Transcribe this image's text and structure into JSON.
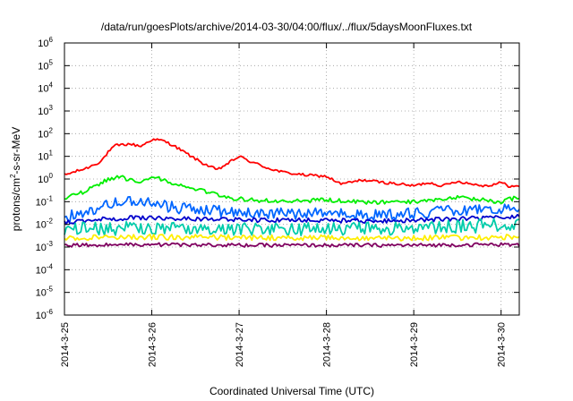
{
  "chart_data": {
    "type": "line",
    "title": "/data/run/goesPlots/archive/2014-03-30/04:00/flux/../flux/5daysMoonFluxes.txt",
    "xlabel": "Coordinated Universal Time (UTC)",
    "ylabel": "protons/cm2-s-sr-MeV",
    "ylabel_parts": [
      "protons/cm",
      "2",
      "-s-sr-MeV"
    ],
    "yscale": "log",
    "ylim": [
      1e-06,
      1000000.0
    ],
    "xlim": [
      "2014-03-25",
      "2014-03-30 05:00"
    ],
    "grid": true,
    "legend": "none",
    "x_ticks": [
      "2014-3-25",
      "2014-3-26",
      "2014-3-27",
      "2014-3-28",
      "2014-3-29",
      "2014-3-30"
    ],
    "y_ticks": [
      {
        "base": "10",
        "exp": "-6"
      },
      {
        "base": "10",
        "exp": "-5"
      },
      {
        "base": "10",
        "exp": "-4"
      },
      {
        "base": "10",
        "exp": "-3"
      },
      {
        "base": "10",
        "exp": "-2"
      },
      {
        "base": "10",
        "exp": "-1"
      },
      {
        "base": "10",
        "exp": "0"
      },
      {
        "base": "10",
        "exp": "1"
      },
      {
        "base": "10",
        "exp": "2"
      },
      {
        "base": "10",
        "exp": "3"
      },
      {
        "base": "10",
        "exp": "4"
      },
      {
        "base": "10",
        "exp": "5"
      },
      {
        "base": "10",
        "exp": "6"
      }
    ],
    "series": [
      {
        "color": "#ff0000",
        "noise": 0.06,
        "points": [
          [
            "2014-03-25 00:00",
            1.5
          ],
          [
            "2014-03-25 06:00",
            3
          ],
          [
            "2014-03-25 10:00",
            6
          ],
          [
            "2014-03-25 12:00",
            15
          ],
          [
            "2014-03-25 14:00",
            30
          ],
          [
            "2014-03-25 18:00",
            35
          ],
          [
            "2014-03-25 21:00",
            28
          ],
          [
            "2014-03-26 00:00",
            55
          ],
          [
            "2014-03-26 03:00",
            50
          ],
          [
            "2014-03-26 06:00",
            30
          ],
          [
            "2014-03-26 10:00",
            12
          ],
          [
            "2014-03-26 14:00",
            5
          ],
          [
            "2014-03-26 18:00",
            2.5
          ],
          [
            "2014-03-26 21:00",
            5
          ],
          [
            "2014-03-27 00:00",
            10
          ],
          [
            "2014-03-27 03:00",
            6
          ],
          [
            "2014-03-27 08:00",
            3
          ],
          [
            "2014-03-27 12:00",
            2
          ],
          [
            "2014-03-27 18:00",
            1.5
          ],
          [
            "2014-03-28 00:00",
            1.3
          ],
          [
            "2014-03-28 04:00",
            0.6
          ],
          [
            "2014-03-28 10:00",
            0.9
          ],
          [
            "2014-03-28 16:00",
            0.7
          ],
          [
            "2014-03-28 20:00",
            0.6
          ],
          [
            "2014-03-29 00:00",
            0.5
          ],
          [
            "2014-03-29 04:00",
            0.7
          ],
          [
            "2014-03-29 08:00",
            0.5
          ],
          [
            "2014-03-29 12:00",
            0.8
          ],
          [
            "2014-03-29 16:00",
            0.6
          ],
          [
            "2014-03-29 20:00",
            0.5
          ],
          [
            "2014-03-30 00:00",
            0.7
          ],
          [
            "2014-03-30 02:00",
            0.5
          ],
          [
            "2014-03-30 05:00",
            0.45
          ]
        ]
      },
      {
        "color": "#00ee00",
        "noise": 0.09,
        "points": [
          [
            "2014-03-25 00:00",
            0.15
          ],
          [
            "2014-03-25 06:00",
            0.3
          ],
          [
            "2014-03-25 12:00",
            1
          ],
          [
            "2014-03-25 15:00",
            1.3
          ],
          [
            "2014-03-25 21:00",
            0.6
          ],
          [
            "2014-03-26 00:00",
            1.3
          ],
          [
            "2014-03-26 04:00",
            0.8
          ],
          [
            "2014-03-26 10:00",
            0.4
          ],
          [
            "2014-03-26 16:00",
            0.25
          ],
          [
            "2014-03-26 21:00",
            0.15
          ],
          [
            "2014-03-27 03:00",
            0.12
          ],
          [
            "2014-03-27 12:00",
            0.1
          ],
          [
            "2014-03-28 00:00",
            0.12
          ],
          [
            "2014-03-28 12:00",
            0.09
          ],
          [
            "2014-03-29 00:00",
            0.1
          ],
          [
            "2014-03-29 12:00",
            0.15
          ],
          [
            "2014-03-30 00:00",
            0.1
          ],
          [
            "2014-03-30 05:00",
            0.17
          ]
        ]
      },
      {
        "color": "#0066ff",
        "noise": 0.25,
        "points": [
          [
            "2014-03-25 00:00",
            0.02
          ],
          [
            "2014-03-25 10:00",
            0.06
          ],
          [
            "2014-03-25 16:00",
            0.12
          ],
          [
            "2014-03-26 00:00",
            0.08
          ],
          [
            "2014-03-26 08:00",
            0.05
          ],
          [
            "2014-03-26 16:00",
            0.04
          ],
          [
            "2014-03-27 00:00",
            0.035
          ],
          [
            "2014-03-27 12:00",
            0.03
          ],
          [
            "2014-03-28 00:00",
            0.03
          ],
          [
            "2014-03-28 12:00",
            0.025
          ],
          [
            "2014-03-29 00:00",
            0.03
          ],
          [
            "2014-03-29 12:00",
            0.04
          ],
          [
            "2014-03-30 00:00",
            0.05
          ],
          [
            "2014-03-30 05:00",
            0.06
          ]
        ]
      },
      {
        "color": "#0000cc",
        "noise": 0.1,
        "points": [
          [
            "2014-03-25 00:00",
            0.012
          ],
          [
            "2014-03-25 12:00",
            0.018
          ],
          [
            "2014-03-26 00:00",
            0.02
          ],
          [
            "2014-03-26 12:00",
            0.017
          ],
          [
            "2014-03-27 00:00",
            0.016
          ],
          [
            "2014-03-27 12:00",
            0.015
          ],
          [
            "2014-03-28 00:00",
            0.015
          ],
          [
            "2014-03-28 12:00",
            0.014
          ],
          [
            "2014-03-29 00:00",
            0.015
          ],
          [
            "2014-03-29 12:00",
            0.018
          ],
          [
            "2014-03-30 00:00",
            0.02
          ],
          [
            "2014-03-30 05:00",
            0.022
          ]
        ]
      },
      {
        "color": "#00ccaa",
        "noise": 0.3,
        "points": [
          [
            "2014-03-25 00:00",
            0.006
          ],
          [
            "2014-03-26 00:00",
            0.007
          ],
          [
            "2014-03-27 00:00",
            0.006
          ],
          [
            "2014-03-28 00:00",
            0.006
          ],
          [
            "2014-03-29 00:00",
            0.007
          ],
          [
            "2014-03-30 00:00",
            0.009
          ],
          [
            "2014-03-30 05:00",
            0.01
          ]
        ]
      },
      {
        "color": "#ffee00",
        "noise": 0.12,
        "points": [
          [
            "2014-03-25 00:00",
            0.0025
          ],
          [
            "2014-03-26 00:00",
            0.0028
          ],
          [
            "2014-03-27 00:00",
            0.0026
          ],
          [
            "2014-03-28 00:00",
            0.0026
          ],
          [
            "2014-03-29 00:00",
            0.0025
          ],
          [
            "2014-03-30 00:00",
            0.0027
          ],
          [
            "2014-03-30 05:00",
            0.0028
          ]
        ]
      },
      {
        "color": "#800060",
        "noise": 0.08,
        "points": [
          [
            "2014-03-25 00:00",
            0.0012
          ],
          [
            "2014-03-26 00:00",
            0.0013
          ],
          [
            "2014-03-27 00:00",
            0.0012
          ],
          [
            "2014-03-28 00:00",
            0.0012
          ],
          [
            "2014-03-29 00:00",
            0.0012
          ],
          [
            "2014-03-30 00:00",
            0.0013
          ],
          [
            "2014-03-30 05:00",
            0.0012
          ]
        ]
      }
    ]
  }
}
